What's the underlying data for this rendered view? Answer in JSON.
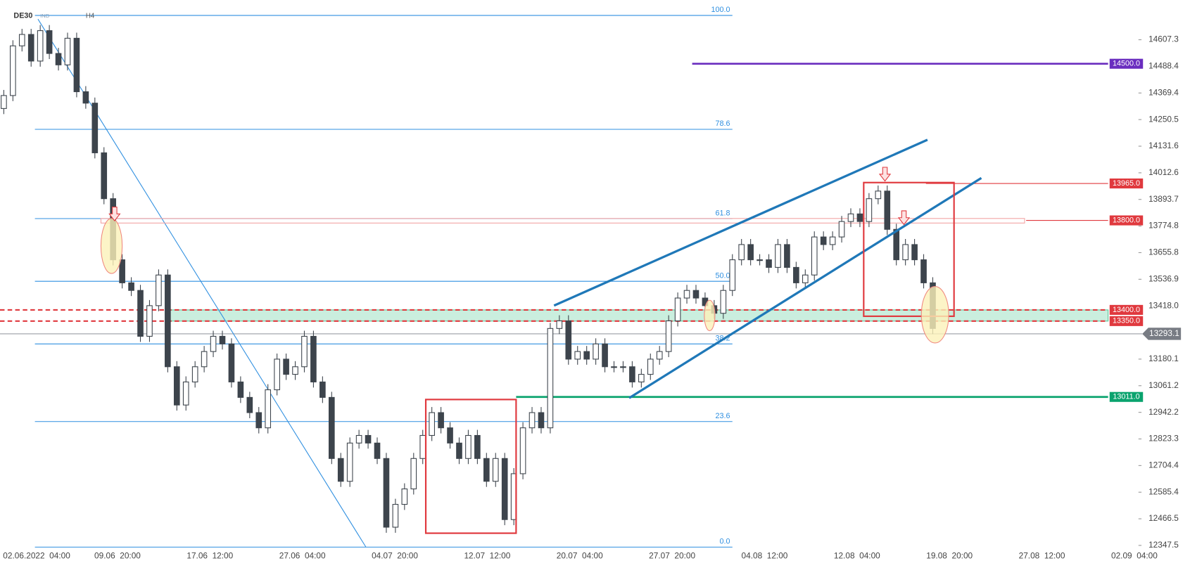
{
  "chart_data": {
    "type": "candlestick",
    "symbol": "DE30",
    "instrument_type": "IND",
    "timeframe": "H4",
    "x_labels": [
      "02.06.2022  04:00",
      "09.06  20:00",
      "17.06  12:00",
      "27.06  04:00",
      "04.07  20:00",
      "12.07  12:00",
      "20.07  04:00",
      "27.07  20:00",
      "04.08  12:00",
      "12.08  04:00",
      "19.08  20:00",
      "27.08  12:00",
      "02.09  04:00"
    ],
    "up_color": "#ffffff",
    "down_color": "#3d444c",
    "wick_color": "#3d444c",
    "open": [
      14300,
      14358,
      14580,
      14631,
      14512,
      14648,
      14546,
      14495,
      14614,
      14375,
      14324,
      14102,
      13897,
      13624,
      13521,
      13487,
      13282,
      13419,
      13556,
      13146,
      12975,
      13078,
      13146,
      13214,
      13282,
      13248,
      13078,
      13009,
      12941,
      12873,
      13043,
      13180,
      13112,
      13146,
      13282,
      13078,
      13009,
      12736,
      12634,
      12805,
      12839,
      12805,
      12736,
      12429,
      12531,
      12600,
      12736,
      12839,
      12941,
      12873,
      12805,
      12736,
      12839,
      12736,
      12634,
      12736,
      12463,
      12668,
      12873,
      12941,
      12873,
      13317,
      13351,
      13180,
      13214,
      13180,
      13248,
      13146,
      13146,
      13146,
      13078,
      13112,
      13180,
      13214,
      13351,
      13453,
      13487,
      13453,
      13419,
      13385,
      13487,
      13624,
      13692,
      13624,
      13624,
      13590,
      13692,
      13590,
      13521,
      13556,
      13726,
      13692,
      13726,
      13795,
      13829,
      13795,
      13897,
      13931,
      13760,
      13624,
      13692,
      13624,
      13521
    ],
    "high": [
      14383,
      14605,
      14656,
      14656,
      14673,
      14673,
      14571,
      14639,
      14639,
      14400,
      14349,
      14127,
      13922,
      13649,
      13546,
      13512,
      13444,
      13581,
      13581,
      13171,
      13103,
      13171,
      13239,
      13307,
      13307,
      13273,
      13103,
      13034,
      12966,
      13068,
      13205,
      13205,
      13171,
      13307,
      13307,
      13103,
      13034,
      12761,
      12830,
      12864,
      12864,
      12830,
      12761,
      12556,
      12625,
      12761,
      12864,
      12966,
      12966,
      12898,
      12830,
      12864,
      12864,
      12761,
      12761,
      12761,
      12693,
      12898,
      12966,
      12966,
      13342,
      13376,
      13376,
      13239,
      13239,
      13273,
      13273,
      13171,
      13171,
      13171,
      13137,
      13205,
      13239,
      13376,
      13478,
      13512,
      13512,
      13478,
      13444,
      13512,
      13649,
      13717,
      13717,
      13649,
      13649,
      13717,
      13717,
      13615,
      13581,
      13751,
      13751,
      13751,
      13820,
      13854,
      13854,
      13922,
      13956,
      13956,
      13785,
      13717,
      13717,
      13649,
      13546
    ],
    "low": [
      14275,
      14333,
      14555,
      14487,
      14487,
      14521,
      14470,
      14470,
      14350,
      14299,
      14077,
      13872,
      13599,
      13496,
      13462,
      13257,
      13257,
      13394,
      13121,
      12950,
      12950,
      13053,
      13121,
      13189,
      13223,
      13053,
      12984,
      12916,
      12848,
      12848,
      13018,
      13087,
      13087,
      13121,
      13053,
      12984,
      12711,
      12609,
      12609,
      12780,
      12780,
      12711,
      12404,
      12404,
      12506,
      12575,
      12711,
      12814,
      12848,
      12780,
      12711,
      12711,
      12711,
      12609,
      12609,
      12438,
      12438,
      12643,
      12848,
      12848,
      12848,
      13292,
      13155,
      13155,
      13155,
      13155,
      13121,
      13121,
      13121,
      13053,
      13053,
      13087,
      13155,
      13189,
      13326,
      13428,
      13428,
      13394,
      13360,
      13360,
      13462,
      13599,
      13599,
      13599,
      13565,
      13565,
      13565,
      13496,
      13496,
      13531,
      13667,
      13667,
      13701,
      13770,
      13770,
      13770,
      13872,
      13735,
      13599,
      13599,
      13599,
      13496,
      13292
    ],
    "close": [
      14358,
      14580,
      14631,
      14512,
      14648,
      14546,
      14495,
      14614,
      14375,
      14324,
      14102,
      13897,
      13624,
      13521,
      13487,
      13282,
      13419,
      13556,
      13146,
      12975,
      13078,
      13146,
      13214,
      13282,
      13248,
      13078,
      13009,
      12941,
      12873,
      13043,
      13180,
      13112,
      13146,
      13282,
      13078,
      13009,
      12736,
      12634,
      12805,
      12839,
      12805,
      12736,
      12429,
      12531,
      12600,
      12736,
      12839,
      12941,
      12873,
      12805,
      12736,
      12839,
      12736,
      12634,
      12736,
      12463,
      12668,
      12873,
      12941,
      12873,
      13317,
      13351,
      13180,
      13214,
      13180,
      13248,
      13146,
      13146,
      13146,
      13078,
      13112,
      13180,
      13214,
      13351,
      13453,
      13487,
      13453,
      13419,
      13385,
      13487,
      13624,
      13692,
      13624,
      13624,
      13590,
      13692,
      13590,
      13521,
      13556,
      13726,
      13692,
      13726,
      13795,
      13829,
      13795,
      13897,
      13931,
      13760,
      13624,
      13692,
      13624,
      13521,
      13317
    ],
    "ylim": [
      12340.7,
      14784.9
    ],
    "yticks": [
      14607.3,
      14488.4,
      14369.4,
      14250.5,
      14131.6,
      14012.6,
      13893.7,
      13774.8,
      13655.8,
      13536.9,
      {
        "value": 13418,
        "label": "13418.0"
      },
      13180.1,
      13061.2,
      12942.2,
      12823.3,
      12704.4,
      12585.4,
      12466.5,
      12347.5
    ],
    "fibonacci": {
      "color": "#2f8fe0",
      "levels": [
        {
          "label": "100.0",
          "price": 14716
        },
        {
          "label": "78.6",
          "price": 14207
        },
        {
          "label": "61.8",
          "price": 13808
        },
        {
          "label": "50.0",
          "price": 13528
        },
        {
          "label": "38.2",
          "price": 13248
        },
        {
          "label": "23.6",
          "price": 12901
        },
        {
          "label": "0.0",
          "price": 12340
        }
      ]
    },
    "levels": [
      {
        "value": 14500,
        "label": "14500.0",
        "color": "#6a2dbf"
      },
      {
        "value": 13965,
        "label": "13965.0",
        "color": "#e0393e"
      },
      {
        "value": 13800,
        "label": "13800.0",
        "color": "#e0393e"
      },
      {
        "value": 13400,
        "label": "13400.0",
        "color": "#e0393e"
      },
      {
        "value": 13350,
        "label": "13350.0",
        "color": "#e0393e"
      },
      {
        "value": 13011,
        "label": "13011.0",
        "color": "#0aa36e"
      }
    ],
    "current_price": 13293.1,
    "current_color": "#787c84"
  }
}
